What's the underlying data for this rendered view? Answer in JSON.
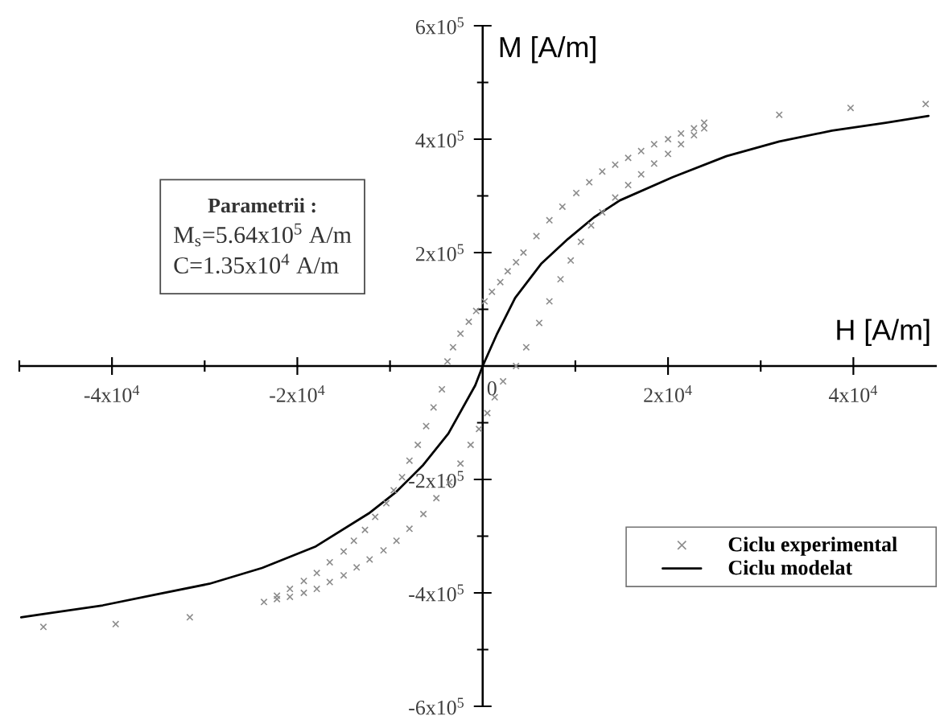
{
  "chart_data": {
    "type": "scatter",
    "xlabel": "H [A/m]",
    "ylabel": "M [A/m]",
    "xlim": [
      -50000,
      49000
    ],
    "ylim": [
      -600000,
      600000
    ],
    "xticks": [
      {
        "value": -50000,
        "label": null
      },
      {
        "value": -40000,
        "label": "-4x10$^{4}$"
      },
      {
        "value": -30000,
        "label": null
      },
      {
        "value": -20000,
        "label": "-2x10$^{4}$"
      },
      {
        "value": -10000,
        "label": null
      },
      0,
      {
        "value": 10000,
        "label": null
      },
      {
        "value": 20000,
        "label": "2x10$^{4}$"
      },
      {
        "value": 30000,
        "label": null
      },
      {
        "value": 40000,
        "label": "4x10$^{4}$"
      }
    ],
    "yticks": [
      {
        "value": -600000,
        "label": "-6x10$^{5}$"
      },
      {
        "value": -500000,
        "label": null
      },
      {
        "value": -400000,
        "label": "-4x10$^{5}$"
      },
      {
        "value": -300000,
        "label": null
      },
      {
        "value": -200000,
        "label": "-2x10$^{5}$"
      },
      {
        "value": -100000,
        "label": null
      },
      {
        "value": 100000,
        "label": null
      },
      {
        "value": 200000,
        "label": "2x10$^{5}$"
      },
      {
        "value": 300000,
        "label": null
      },
      {
        "value": 400000,
        "label": "4x10$^{5}$"
      },
      {
        "value": 500000,
        "label": null
      },
      {
        "value": 600000,
        "label": "6x10$^{5}$"
      }
    ],
    "series": [
      {
        "name": "Ciclu experimental",
        "color": "#8c8c8c",
        "marker": "cross",
        "x": [
          -47400,
          -39600,
          -31600,
          -23600,
          -22200,
          -20800,
          -19300,
          -17900,
          -16500,
          -15000,
          -13600,
          -12200,
          -10700,
          -9300,
          -7900,
          -6400,
          -5000,
          -3600,
          -2400,
          -1300,
          -400,
          500,
          1300,
          2200,
          3600,
          4700,
          6100,
          7200,
          8400,
          9500,
          10600,
          11700,
          12900,
          14300,
          15700,
          17100,
          18500,
          20000,
          21400,
          22800,
          23900,
          23900,
          22800,
          21400,
          20000,
          18500,
          17100,
          15700,
          14300,
          12900,
          11500,
          10100,
          8600,
          7200,
          5800,
          4400,
          3600,
          2700,
          1900,
          1000,
          200,
          -700,
          -1500,
          -2400,
          -3200,
          -3800,
          -4400,
          -5300,
          -6100,
          -7000,
          -7900,
          -8700,
          -9600,
          -10400,
          -11600,
          -12700,
          -13900,
          -15000,
          -16500,
          -17900,
          -19300,
          -20800,
          -22200,
          32000,
          39700,
          47800
        ],
        "values": [
          -460000,
          -455000,
          -443000,
          -416000,
          -411000,
          -407000,
          -400000,
          -393000,
          -381000,
          -369000,
          -355000,
          -341000,
          -325000,
          -308000,
          -287000,
          -261000,
          -233000,
          -205000,
          -172000,
          -139000,
          -111000,
          -83000,
          -55000,
          -27000,
          0,
          33000,
          76000,
          114000,
          153000,
          186000,
          219000,
          248000,
          271000,
          297000,
          319000,
          338000,
          357000,
          374000,
          391000,
          407000,
          419000,
          429000,
          419000,
          410000,
          400000,
          391000,
          379000,
          367000,
          355000,
          343000,
          324000,
          305000,
          281000,
          257000,
          229000,
          200000,
          183000,
          167000,
          148000,
          131000,
          114000,
          97000,
          78000,
          57000,
          33000,
          8000,
          -41000,
          -73000,
          -106000,
          -139000,
          -167000,
          -196000,
          -219000,
          -242000,
          -266000,
          -289000,
          -308000,
          -327000,
          -346000,
          -365000,
          -379000,
          -393000,
          -405000,
          443000,
          455000,
          462000
        ]
      },
      {
        "name": "Ciclu modelat",
        "type": "line",
        "color": "#000000",
        "marker": "none",
        "line_style": "solid",
        "x": [
          -49800,
          -41000,
          -35300,
          -29500,
          -23800,
          -18000,
          -12300,
          -9400,
          -6500,
          -3700,
          -800,
          0,
          1500,
          3500,
          6300,
          9200,
          12000,
          14800,
          20500,
          26300,
          32000,
          37700,
          43500,
          48100
        ],
        "values": [
          -443000,
          -422000,
          -403000,
          -384000,
          -356000,
          -318000,
          -260000,
          -223000,
          -176000,
          -119000,
          -34000,
          0,
          55000,
          120000,
          180000,
          224000,
          262000,
          292000,
          333000,
          370000,
          396000,
          415000,
          429000,
          441000
        ]
      }
    ],
    "legend": "bottom right",
    "annotations": [
      "Parametrii :",
      "M$_{s}$=5.64x10$^{5}$ A/m",
      "C=1.35x10$^{4}$ A/m"
    ]
  }
}
